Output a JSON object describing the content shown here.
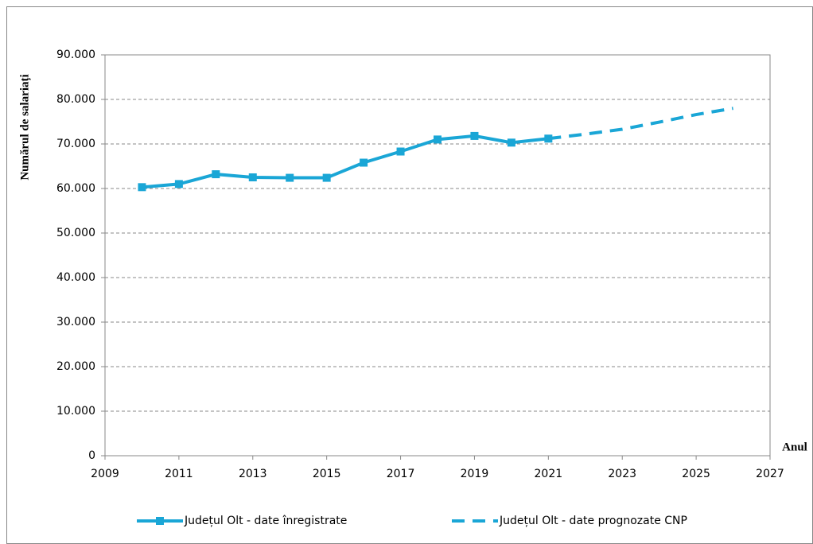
{
  "chart_data": {
    "type": "line",
    "y_label": "Numărul de salariați",
    "x_label": "Anul",
    "xlim": [
      2009,
      2027
    ],
    "xticks": [
      2009,
      2011,
      2013,
      2015,
      2017,
      2019,
      2021,
      2023,
      2025,
      2027
    ],
    "ylim": [
      0,
      90000
    ],
    "yticks": [
      0,
      {
        "value": 10000,
        "label": "10.000"
      },
      {
        "value": 20000,
        "label": "20.000"
      },
      {
        "value": 30000,
        "label": "30.000"
      },
      {
        "value": 40000,
        "label": "40.000"
      },
      {
        "value": 50000,
        "label": "50.000"
      },
      {
        "value": 60000,
        "label": "60.000"
      },
      {
        "value": 70000,
        "label": "70.000"
      },
      {
        "value": 80000,
        "label": "80.000"
      },
      {
        "value": 90000,
        "label": "90.000"
      }
    ],
    "grid": true,
    "legend": "bottom",
    "series": [
      {
        "name": "Județul Olt - date înregistrate",
        "color": "#1aa6d6",
        "marker": "square",
        "dashed": false,
        "x": [
          2010,
          2011,
          2012,
          2013,
          2014,
          2015,
          2016,
          2017,
          2018,
          2019,
          2020,
          2021
        ],
        "values": [
          60300,
          61000,
          63200,
          62500,
          62400,
          62400,
          65800,
          68300,
          71000,
          71800,
          70300,
          71200
        ]
      },
      {
        "name": "Județul Olt - date prognozate CNP",
        "color": "#1aa6d6",
        "marker": null,
        "dashed": true,
        "x": [
          2021,
          2022,
          2023,
          2024,
          2025,
          2026
        ],
        "values": [
          71200,
          72200,
          73300,
          74900,
          76600,
          78000
        ]
      }
    ]
  }
}
